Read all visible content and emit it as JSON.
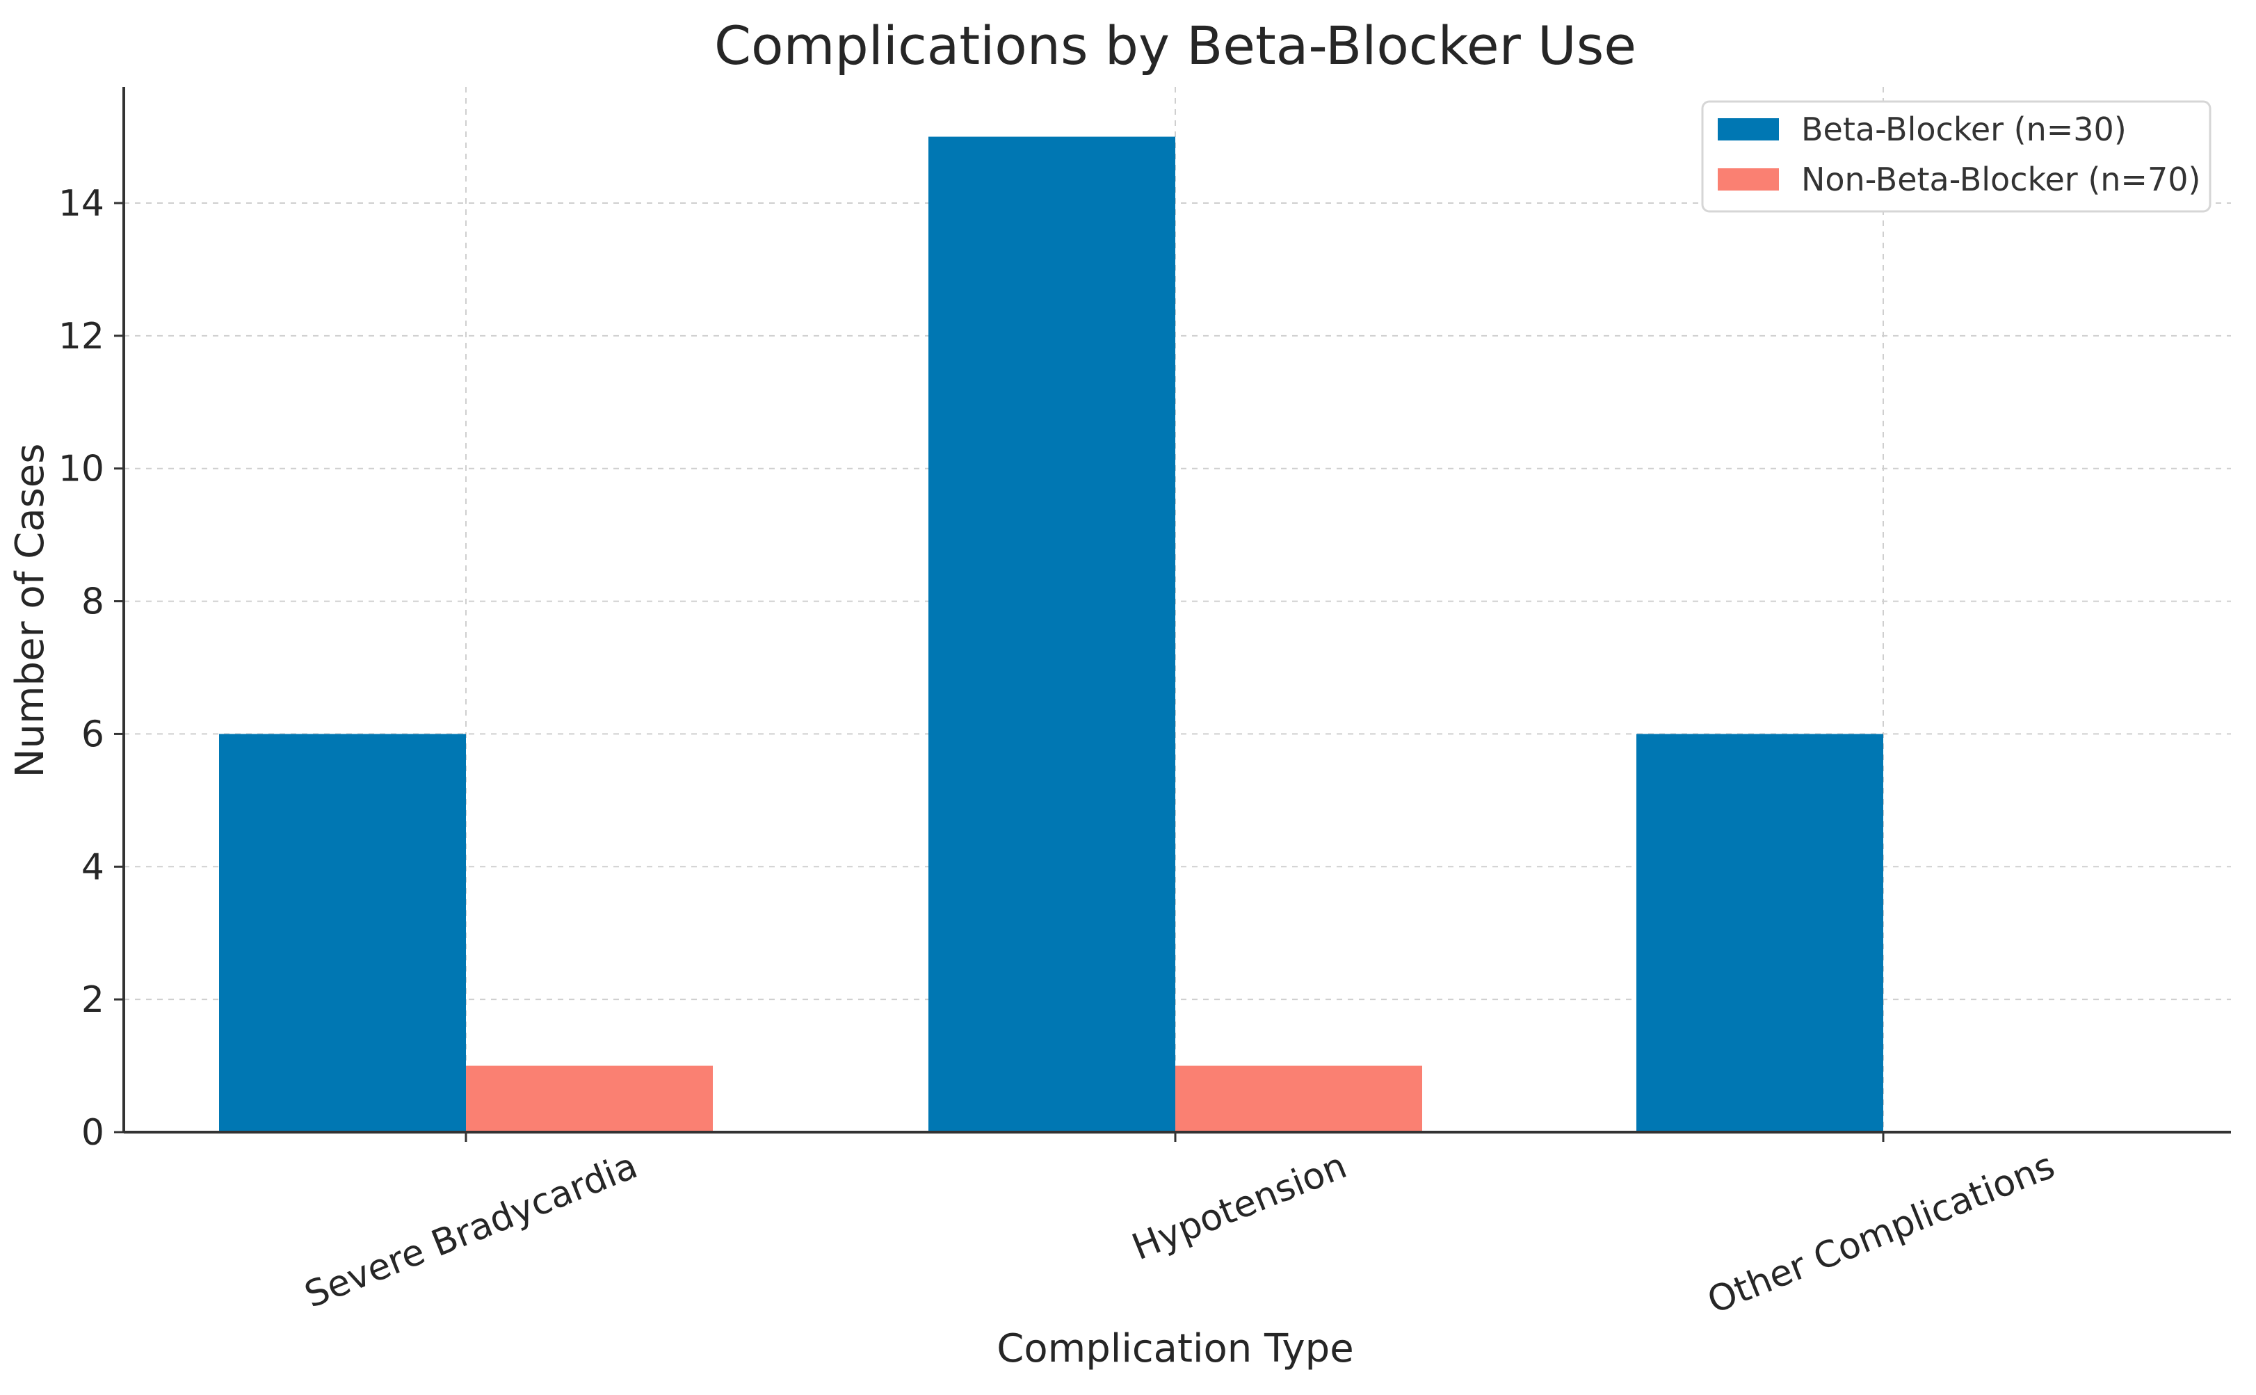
{
  "chart_data": {
    "type": "bar",
    "title": "Complications by Beta-Blocker Use",
    "xlabel": "Complication Type",
    "ylabel": "Number of Cases",
    "categories": [
      "Severe Bradycardia",
      "Hypotension",
      "Other Complications"
    ],
    "series": [
      {
        "name": "Beta-Blocker (n=30)",
        "values": [
          6,
          15,
          6
        ],
        "color": "#0077b3"
      },
      {
        "name": "Non-Beta-Blocker (n=70)",
        "values": [
          1,
          1,
          0
        ],
        "color": "#fa8072"
      }
    ],
    "ylim": [
      0,
      15.75
    ],
    "yticks": [
      0,
      2,
      4,
      6,
      8,
      10,
      12,
      14
    ],
    "grid": true,
    "legend_position": "top-right"
  }
}
